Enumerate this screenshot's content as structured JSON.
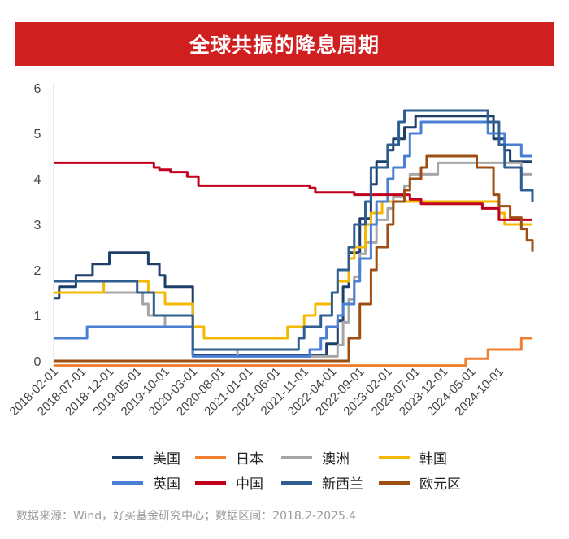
{
  "title": "全球共振的降息周期",
  "source": "数据来源：Wind，好买基金研究中心；数据区间：2018.2-2025.4",
  "chart_data": {
    "type": "line",
    "ylim": [
      0,
      6
    ],
    "y_ticks": [
      "0",
      "1",
      "2",
      "3",
      "4",
      "5",
      "6"
    ],
    "grid": false,
    "legend_position": "bottom",
    "x_ticks": [
      "2018-02-01",
      "2018-07-01",
      "2018-12-01",
      "2019-05-01",
      "2019-10-01",
      "2020-03-01",
      "2020-08-01",
      "2021-01-01",
      "2021-06-01",
      "2021-11-01",
      "2022-04-01",
      "2022-09-01",
      "2023-02-01",
      "2023-07-01",
      "2023-12-01",
      "2024-05-01",
      "2024-10-01"
    ],
    "series": [
      {
        "name": "美国",
        "color": "#1f3f6b",
        "points": [
          [
            "2018-02",
            1.38
          ],
          [
            "2018-03",
            1.63
          ],
          [
            "2018-06",
            1.88
          ],
          [
            "2018-09",
            2.13
          ],
          [
            "2018-12",
            2.38
          ],
          [
            "2019-07",
            2.13
          ],
          [
            "2019-09",
            1.88
          ],
          [
            "2019-10",
            1.63
          ],
          [
            "2020-03",
            0.13
          ],
          [
            "2022-03",
            0.38
          ],
          [
            "2022-05",
            0.88
          ],
          [
            "2022-06",
            1.63
          ],
          [
            "2022-07",
            2.38
          ],
          [
            "2022-09",
            3.13
          ],
          [
            "2022-11",
            3.88
          ],
          [
            "2022-12",
            4.38
          ],
          [
            "2023-02",
            4.63
          ],
          [
            "2023-03",
            4.88
          ],
          [
            "2023-05",
            5.13
          ],
          [
            "2023-07",
            5.38
          ],
          [
            "2024-09",
            4.88
          ],
          [
            "2024-11",
            4.63
          ],
          [
            "2024-12",
            4.38
          ],
          [
            "2025-04",
            4.38
          ]
        ]
      },
      {
        "name": "日本",
        "color": "#f07f2f",
        "points": [
          [
            "2018-02",
            -0.1
          ],
          [
            "2024-03",
            -0.1
          ],
          [
            "2024-04",
            0.05
          ],
          [
            "2024-08",
            0.25
          ],
          [
            "2025-01",
            0.25
          ],
          [
            "2025-02",
            0.5
          ],
          [
            "2025-04",
            0.5
          ]
        ]
      },
      {
        "name": "澳洲",
        "color": "#a6a6a6",
        "points": [
          [
            "2018-02",
            1.5
          ],
          [
            "2019-06",
            1.25
          ],
          [
            "2019-07",
            1.0
          ],
          [
            "2019-10",
            0.75
          ],
          [
            "2020-03",
            0.25
          ],
          [
            "2020-11",
            0.1
          ],
          [
            "2022-05",
            0.35
          ],
          [
            "2022-06",
            0.85
          ],
          [
            "2022-07",
            1.35
          ],
          [
            "2022-08",
            1.85
          ],
          [
            "2022-09",
            2.35
          ],
          [
            "2022-10",
            2.6
          ],
          [
            "2022-12",
            3.1
          ],
          [
            "2023-02",
            3.35
          ],
          [
            "2023-03",
            3.6
          ],
          [
            "2023-05",
            3.85
          ],
          [
            "2023-06",
            4.1
          ],
          [
            "2023-11",
            4.35
          ],
          [
            "2025-02",
            4.1
          ],
          [
            "2025-04",
            4.1
          ]
        ]
      },
      {
        "name": "韩国",
        "color": "#f5b800",
        "points": [
          [
            "2018-02",
            1.5
          ],
          [
            "2018-11",
            1.75
          ],
          [
            "2019-07",
            1.5
          ],
          [
            "2019-10",
            1.25
          ],
          [
            "2020-03",
            0.75
          ],
          [
            "2020-05",
            0.5
          ],
          [
            "2021-08",
            0.75
          ],
          [
            "2021-11",
            1.0
          ],
          [
            "2022-01",
            1.25
          ],
          [
            "2022-04",
            1.5
          ],
          [
            "2022-05",
            1.75
          ],
          [
            "2022-07",
            2.25
          ],
          [
            "2022-08",
            2.5
          ],
          [
            "2022-10",
            3.0
          ],
          [
            "2022-11",
            3.25
          ],
          [
            "2023-01",
            3.5
          ],
          [
            "2024-10",
            3.25
          ],
          [
            "2024-11",
            3.0
          ],
          [
            "2025-04",
            3.0
          ]
        ]
      },
      {
        "name": "英国",
        "color": "#4a7fd4",
        "points": [
          [
            "2018-02",
            0.5
          ],
          [
            "2018-08",
            0.75
          ],
          [
            "2020-03",
            0.1
          ],
          [
            "2021-12",
            0.25
          ],
          [
            "2022-02",
            0.5
          ],
          [
            "2022-03",
            0.75
          ],
          [
            "2022-05",
            1.0
          ],
          [
            "2022-06",
            1.25
          ],
          [
            "2022-08",
            1.75
          ],
          [
            "2022-09",
            2.25
          ],
          [
            "2022-11",
            3.0
          ],
          [
            "2022-12",
            3.5
          ],
          [
            "2023-02",
            4.0
          ],
          [
            "2023-03",
            4.25
          ],
          [
            "2023-05",
            4.5
          ],
          [
            "2023-06",
            5.0
          ],
          [
            "2023-08",
            5.25
          ],
          [
            "2024-08",
            5.0
          ],
          [
            "2024-11",
            4.75
          ],
          [
            "2025-02",
            4.5
          ],
          [
            "2025-04",
            4.5
          ]
        ]
      },
      {
        "name": "中国",
        "color": "#c0001d",
        "points": [
          [
            "2018-02",
            4.35
          ],
          [
            "2019-08",
            4.25
          ],
          [
            "2019-09",
            4.2
          ],
          [
            "2019-11",
            4.15
          ],
          [
            "2020-02",
            4.05
          ],
          [
            "2020-04",
            3.85
          ],
          [
            "2021-12",
            3.8
          ],
          [
            "2022-01",
            3.7
          ],
          [
            "2022-08",
            3.65
          ],
          [
            "2023-06",
            3.55
          ],
          [
            "2023-08",
            3.45
          ],
          [
            "2024-02",
            3.45
          ],
          [
            "2024-07",
            3.35
          ],
          [
            "2024-10",
            3.1
          ],
          [
            "2025-04",
            3.1
          ]
        ]
      },
      {
        "name": "新西兰",
        "color": "#2f5f90",
        "points": [
          [
            "2018-02",
            1.75
          ],
          [
            "2019-05",
            1.5
          ],
          [
            "2019-08",
            1.0
          ],
          [
            "2020-03",
            0.25
          ],
          [
            "2021-10",
            0.5
          ],
          [
            "2021-11",
            0.75
          ],
          [
            "2022-02",
            1.0
          ],
          [
            "2022-04",
            1.5
          ],
          [
            "2022-05",
            2.0
          ],
          [
            "2022-07",
            2.5
          ],
          [
            "2022-08",
            3.0
          ],
          [
            "2022-10",
            3.5
          ],
          [
            "2022-11",
            4.25
          ],
          [
            "2023-02",
            4.75
          ],
          [
            "2023-04",
            5.25
          ],
          [
            "2023-05",
            5.5
          ],
          [
            "2024-08",
            5.25
          ],
          [
            "2024-10",
            4.75
          ],
          [
            "2024-11",
            4.25
          ],
          [
            "2025-02",
            3.75
          ],
          [
            "2025-04",
            3.5
          ]
        ]
      },
      {
        "name": "欧元区",
        "color": "#9c4e14",
        "points": [
          [
            "2018-02",
            0.0
          ],
          [
            "2022-07",
            0.5
          ],
          [
            "2022-09",
            1.25
          ],
          [
            "2022-11",
            2.0
          ],
          [
            "2022-12",
            2.5
          ],
          [
            "2023-02",
            3.0
          ],
          [
            "2023-03",
            3.5
          ],
          [
            "2023-05",
            3.75
          ],
          [
            "2023-06",
            4.0
          ],
          [
            "2023-08",
            4.25
          ],
          [
            "2023-09",
            4.5
          ],
          [
            "2024-06",
            4.25
          ],
          [
            "2024-09",
            3.65
          ],
          [
            "2024-10",
            3.4
          ],
          [
            "2024-12",
            3.15
          ],
          [
            "2025-02",
            2.9
          ],
          [
            "2025-03",
            2.65
          ],
          [
            "2025-04",
            2.4
          ]
        ]
      }
    ]
  }
}
